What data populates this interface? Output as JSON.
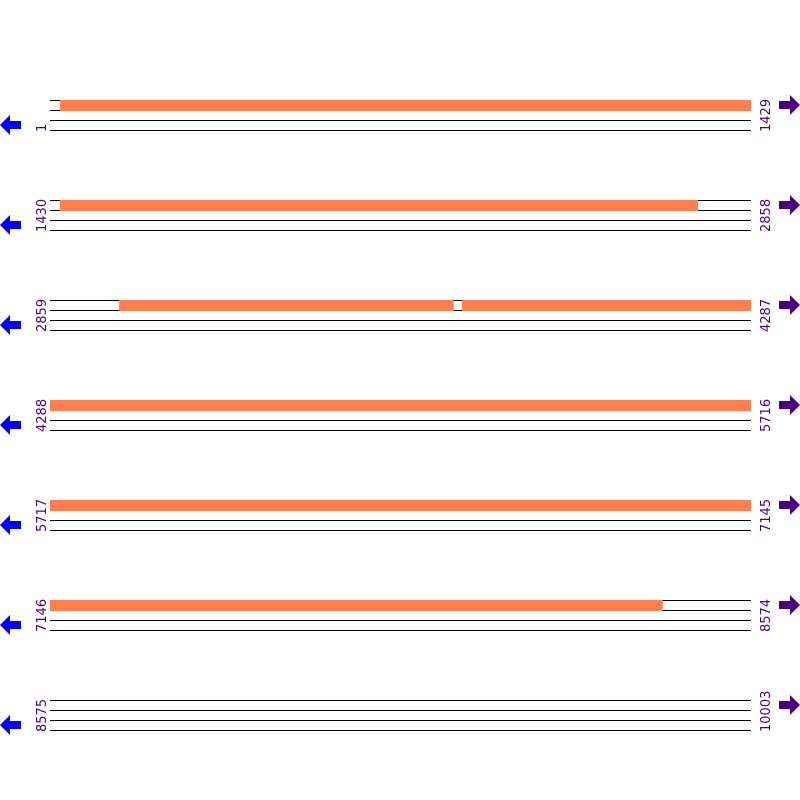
{
  "colors": {
    "feature": "#ff7f50",
    "line": "#000000",
    "label": "#4b0082",
    "left_arrow": "#0000ff",
    "right_arrow": "#4b0082"
  },
  "icons": {
    "left": "arrow-left-icon",
    "right": "arrow-right-icon"
  },
  "rows": [
    {
      "start": "1",
      "end": "1429",
      "features": [
        [
          21,
          1429
        ]
      ]
    },
    {
      "start": "1430",
      "end": "2858",
      "features": [
        [
          1450,
          2750
        ]
      ]
    },
    {
      "start": "2859",
      "end": "4287",
      "features": [
        [
          3000,
          3681
        ],
        [
          3699,
          4287
        ]
      ]
    },
    {
      "start": "4288",
      "end": "5716",
      "features": [
        [
          4288,
          5716
        ]
      ]
    },
    {
      "start": "5717",
      "end": "7145",
      "features": [
        [
          5717,
          7145
        ]
      ]
    },
    {
      "start": "7146",
      "end": "8574",
      "features": [
        [
          7146,
          8394
        ]
      ]
    },
    {
      "start": "8575",
      "end": "10003",
      "features": []
    }
  ]
}
